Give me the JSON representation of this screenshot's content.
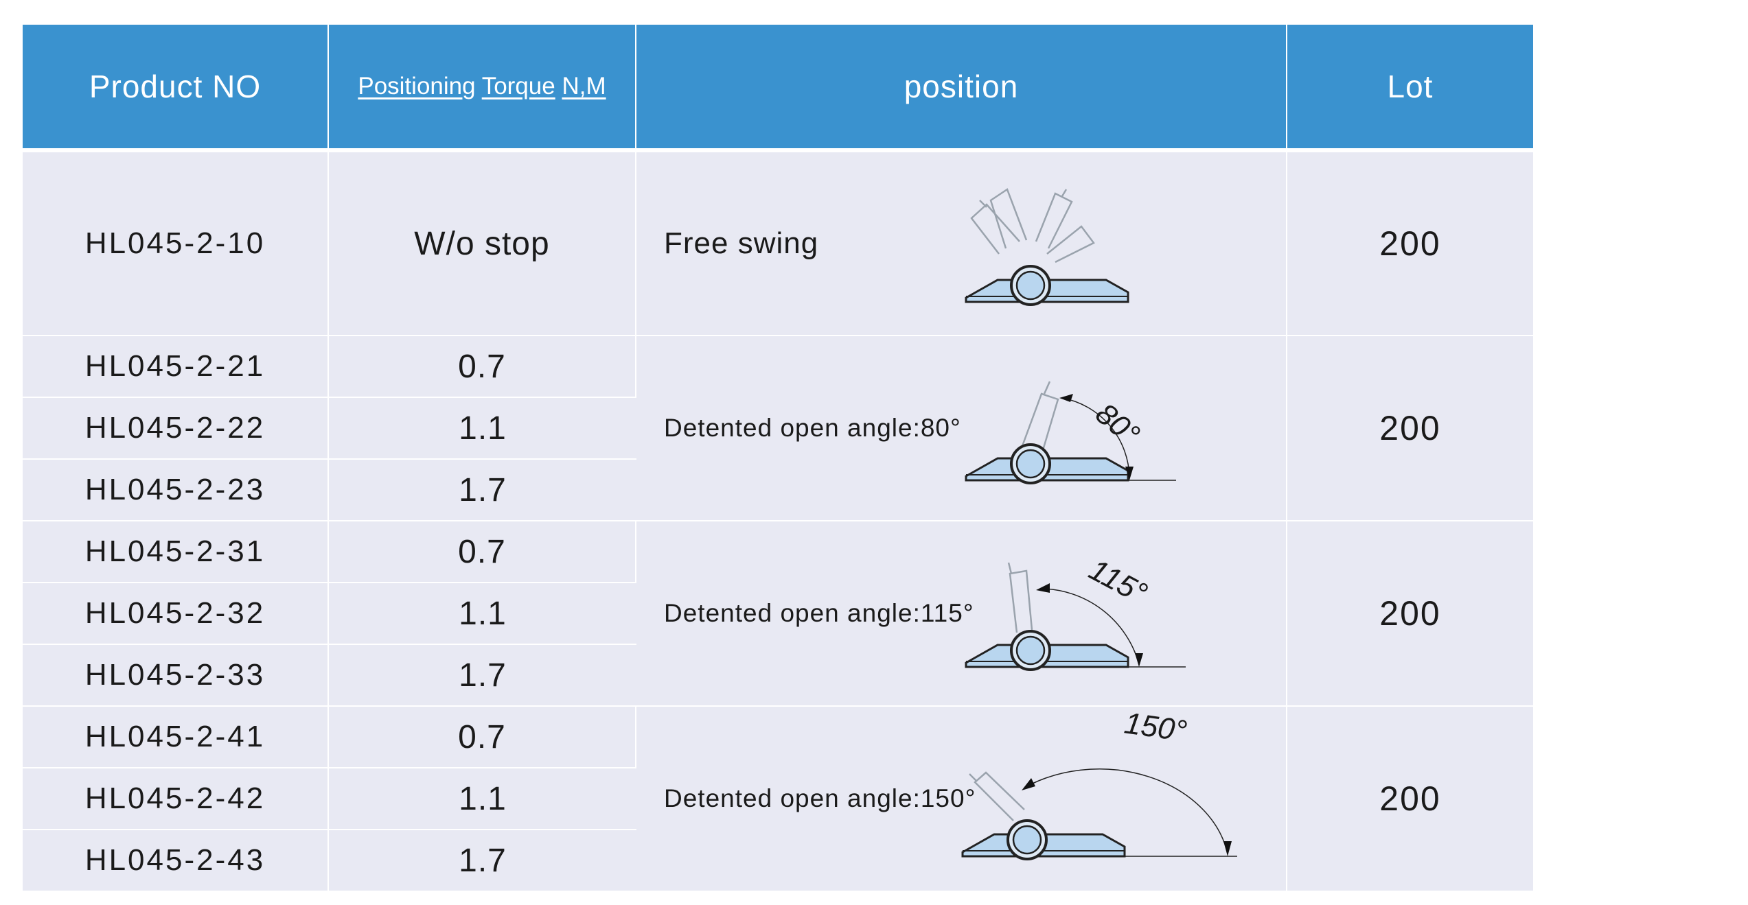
{
  "header": {
    "product_no": "Product NO",
    "torque_words": [
      "Positioning",
      "Torque",
      "N,M"
    ],
    "position": "position",
    "lot": "Lot"
  },
  "groups": [
    {
      "position_label": "Free swing",
      "lot": "200",
      "angle_label": "",
      "rows": [
        {
          "product_no": "HL045-2-10",
          "torque": "W/o stop"
        }
      ]
    },
    {
      "position_label": "Detented open angle:80°",
      "lot": "200",
      "angle_label": "80°",
      "rows": [
        {
          "product_no": "HL045-2-21",
          "torque": "0.7"
        },
        {
          "product_no": "HL045-2-22",
          "torque": "1.1"
        },
        {
          "product_no": "HL045-2-23",
          "torque": "1.7"
        }
      ]
    },
    {
      "position_label": "Detented open angle:115°",
      "lot": "200",
      "angle_label": "115°",
      "rows": [
        {
          "product_no": "HL045-2-31",
          "torque": "0.7"
        },
        {
          "product_no": "HL045-2-32",
          "torque": "1.1"
        },
        {
          "product_no": "HL045-2-33",
          "torque": "1.7"
        }
      ]
    },
    {
      "position_label": "Detented open angle:150°",
      "lot": "200",
      "angle_label": "150°",
      "rows": [
        {
          "product_no": "HL045-2-41",
          "torque": "0.7"
        },
        {
          "product_no": "HL045-2-42",
          "torque": "1.1"
        },
        {
          "product_no": "HL045-2-43",
          "torque": "1.7"
        }
      ]
    }
  ],
  "colors": {
    "header_bg": "#3a92cf",
    "header_text": "#ffffff",
    "cell_bg": "#e8e9f3",
    "hinge_fill": "#b9d6ef"
  },
  "icons": [
    "hinge-free-swing-icon",
    "hinge-80-degree-icon",
    "hinge-115-degree-icon",
    "hinge-150-degree-icon"
  ]
}
